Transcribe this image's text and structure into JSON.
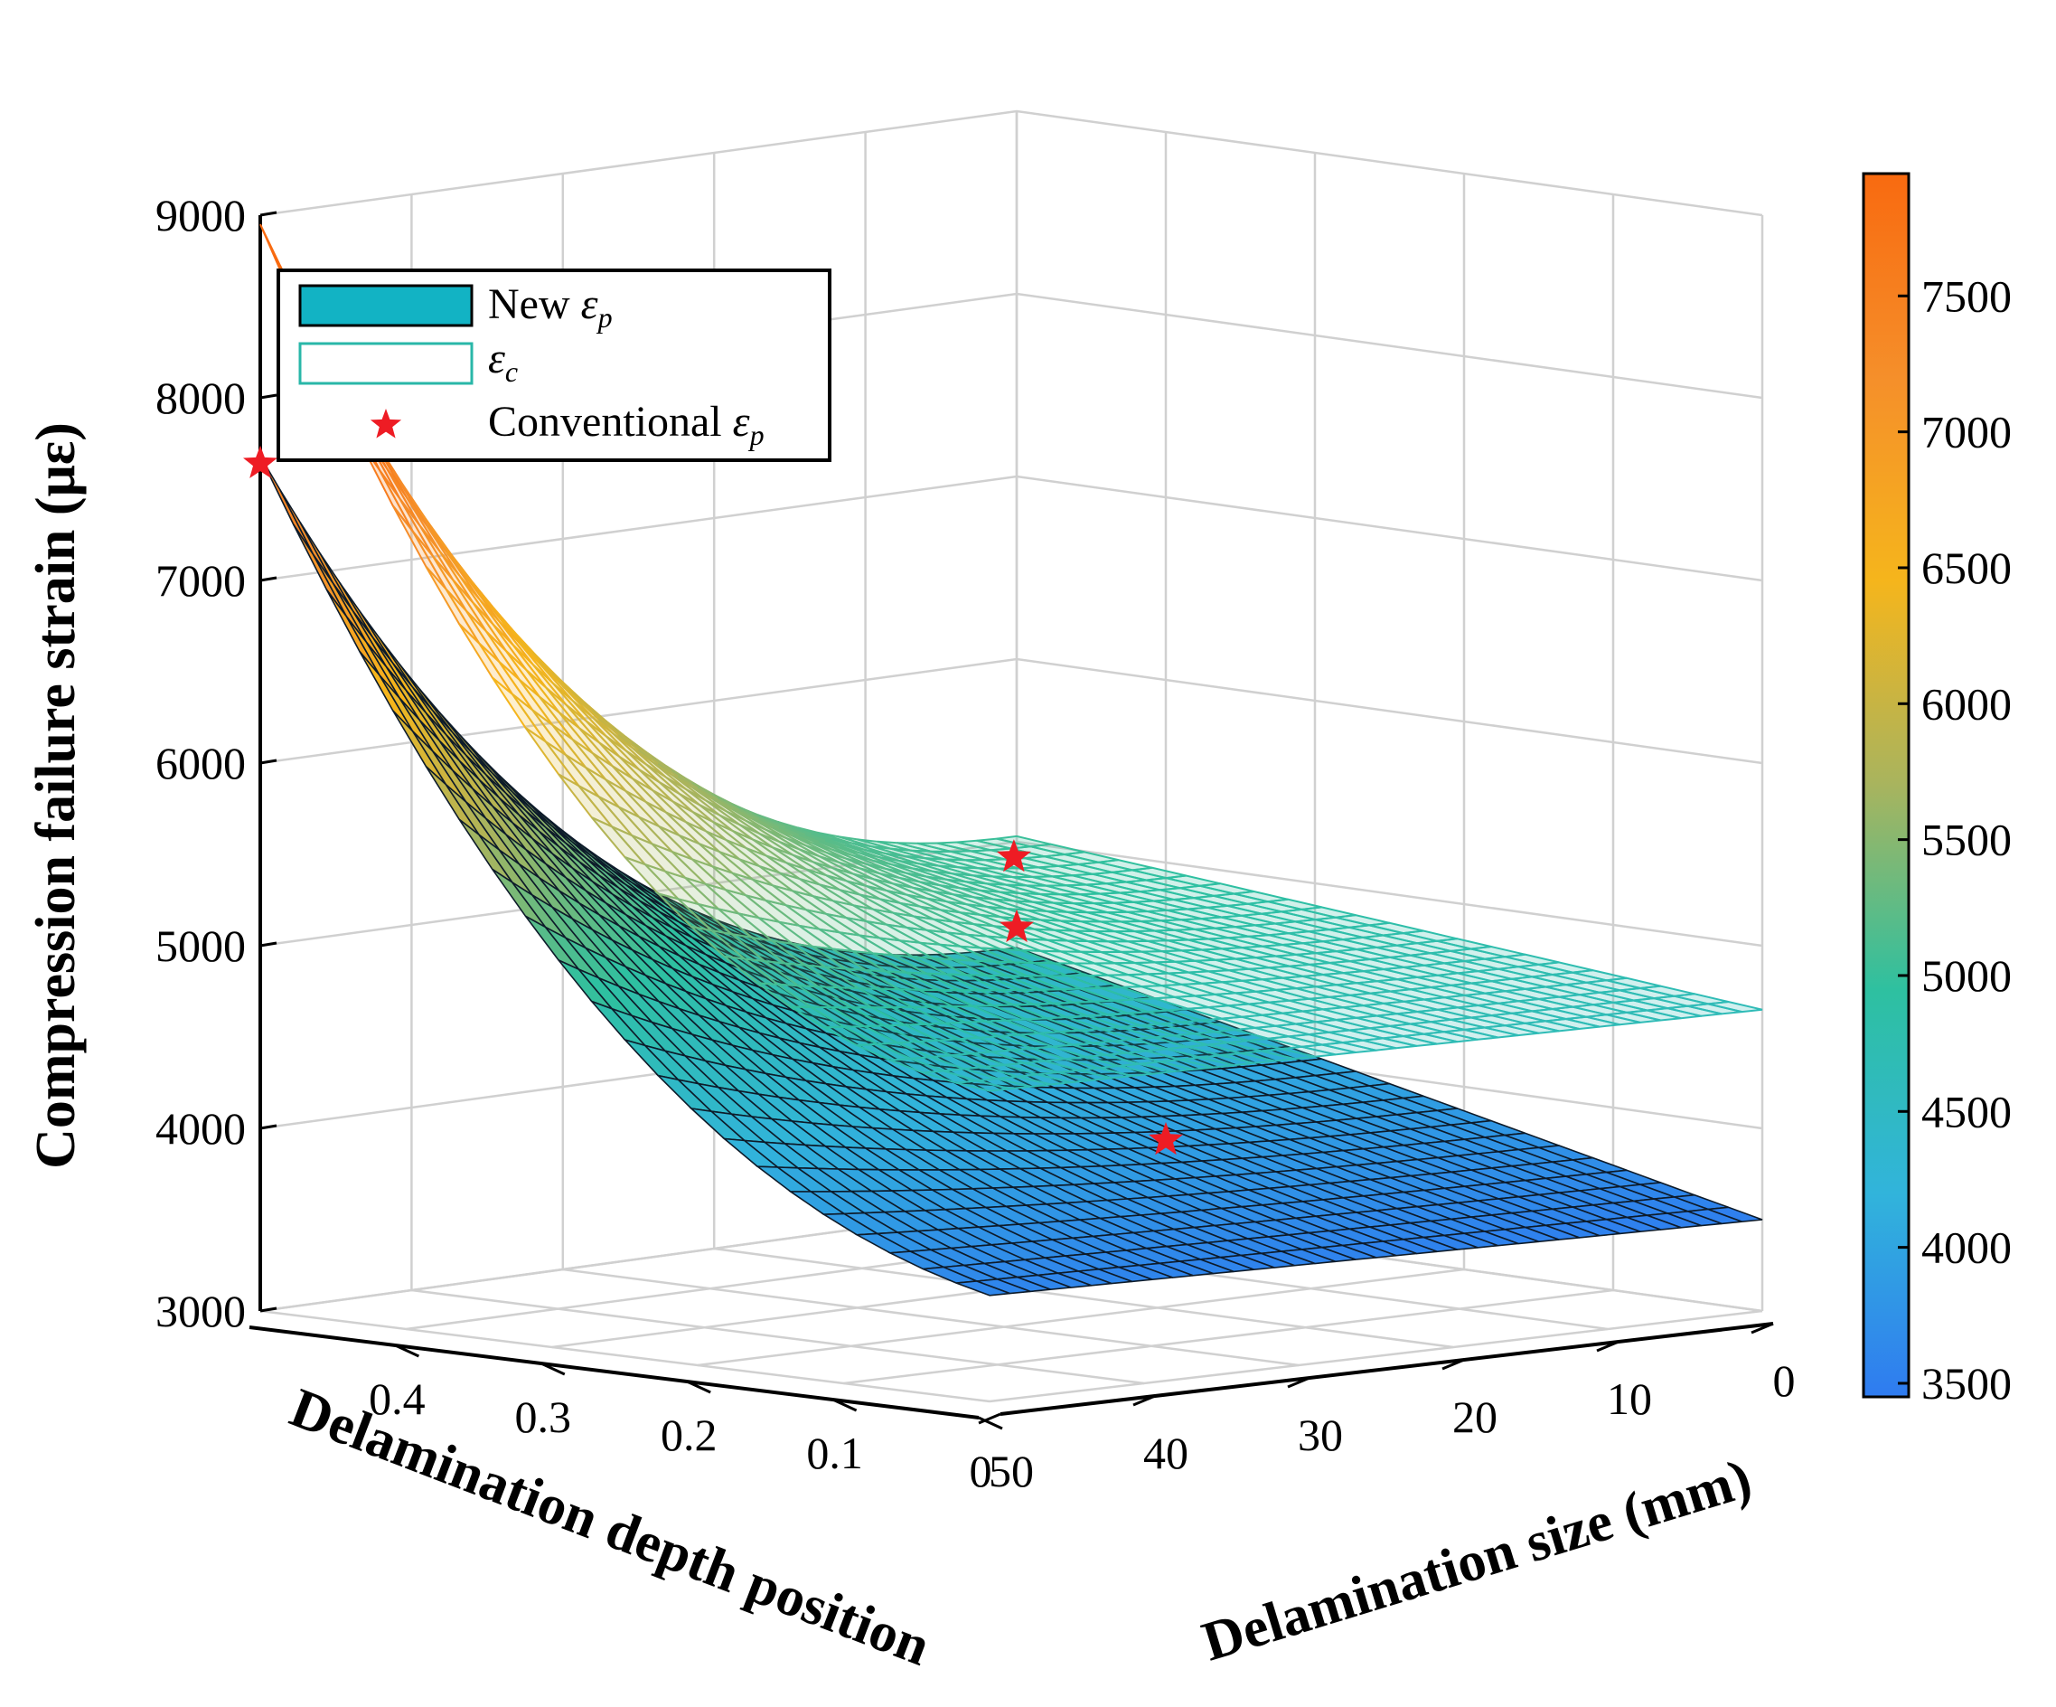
{
  "chart_data": {
    "type": "surface3d",
    "title": "",
    "zlabel": "Compression failure strain (με)",
    "xlabel": "Delamination depth position",
    "ylabel": "Delamination size (mm)",
    "xlim": [
      0,
      0.5
    ],
    "ylim": [
      0,
      50
    ],
    "zlim": [
      3000,
      9000
    ],
    "ztick_labels": [
      "3000",
      "4000",
      "5000",
      "6000",
      "7000",
      "8000",
      "9000"
    ],
    "xtick_labels": [
      "0",
      "0.1",
      "0.2",
      "0.3",
      "0.4"
    ],
    "ytick_labels": [
      "0",
      "10",
      "20",
      "30",
      "40",
      "50"
    ],
    "colorbar": {
      "min": 3450,
      "max": 7950,
      "tick_labels": [
        "3500",
        "4000",
        "4500",
        "5000",
        "5500",
        "6000",
        "6500",
        "7000",
        "7500"
      ],
      "colors": [
        "#2f7bf0",
        "#31b4db",
        "#2ec0a0",
        "#a8b45e",
        "#f5b51c",
        "#f58f2a",
        "#f86a10"
      ]
    },
    "legend": {
      "location": "top-left",
      "entries": [
        {
          "label": "New ",
          "symbol": "ε",
          "sub": "p",
          "style": "filled",
          "color": "#12b3c4"
        },
        {
          "label": "",
          "symbol": "ε",
          "sub": "c",
          "style": "mesh",
          "color": "#29b7a8"
        },
        {
          "label": "Conventional ",
          "symbol": "ε",
          "sub": "p",
          "style": "star",
          "color": "#ee1c24"
        }
      ]
    },
    "series": [
      {
        "name": "New εp",
        "corner_values": {
          "depth_0.5_size_0": 4420,
          "depth_0_size_0": 3500,
          "depth_0_size_50": 3580,
          "depth_0.5_size_50": 7680
        }
      },
      {
        "name": "εc",
        "corner_values": {
          "depth_0.5_size_0": 5030,
          "depth_0_size_0": 4650,
          "depth_0_size_50": 4700,
          "depth_0.5_size_50": 8950
        }
      }
    ],
    "conventional_points": [
      {
        "depth": 0.5,
        "size": 0,
        "strain": 4530
      },
      {
        "depth": 0.5,
        "size": 50,
        "strain": 7640
      },
      {
        "depth": 0.4,
        "size": 0,
        "strain": 3480
      },
      {
        "depth": 0.4,
        "size": 10,
        "strain": 5140
      }
    ]
  }
}
